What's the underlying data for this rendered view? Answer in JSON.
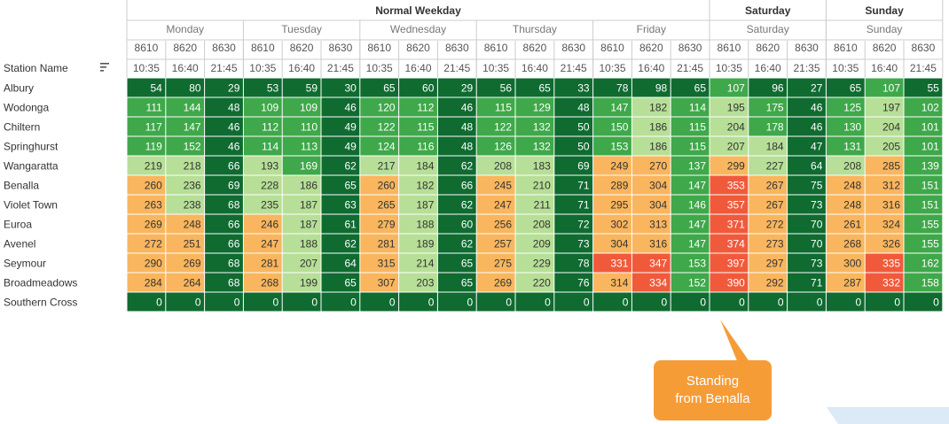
{
  "chart_data": {
    "type": "heatmap",
    "row_header": "Station Name",
    "groups": [
      {
        "label": "Normal Weekday",
        "days": [
          "Monday",
          "Tuesday",
          "Wednesday",
          "Thursday",
          "Friday"
        ]
      },
      {
        "label": "Saturday",
        "days": [
          "Saturday"
        ]
      },
      {
        "label": "Sunday",
        "days": [
          "Sunday"
        ]
      }
    ],
    "columns": [
      {
        "day": "Monday",
        "train": "8610",
        "time": "10:35"
      },
      {
        "day": "Monday",
        "train": "8620",
        "time": "16:40"
      },
      {
        "day": "Monday",
        "train": "8630",
        "time": "21:45"
      },
      {
        "day": "Tuesday",
        "train": "8610",
        "time": "10:35"
      },
      {
        "day": "Tuesday",
        "train": "8620",
        "time": "16:40"
      },
      {
        "day": "Tuesday",
        "train": "8630",
        "time": "21:45"
      },
      {
        "day": "Wednesday",
        "train": "8610",
        "time": "10:35"
      },
      {
        "day": "Wednesday",
        "train": "8620",
        "time": "16:40"
      },
      {
        "day": "Wednesday",
        "train": "8630",
        "time": "21:45"
      },
      {
        "day": "Thursday",
        "train": "8610",
        "time": "10:35"
      },
      {
        "day": "Thursday",
        "train": "8620",
        "time": "16:40"
      },
      {
        "day": "Thursday",
        "train": "8630",
        "time": "21:45"
      },
      {
        "day": "Friday",
        "train": "8610",
        "time": "10:35"
      },
      {
        "day": "Friday",
        "train": "8620",
        "time": "16:40"
      },
      {
        "day": "Friday",
        "train": "8630",
        "time": "21:45"
      },
      {
        "day": "Saturday",
        "train": "8610",
        "time": "10:35"
      },
      {
        "day": "Saturday",
        "train": "8620",
        "time": "16:40"
      },
      {
        "day": "Saturday",
        "train": "8630",
        "time": "21:35"
      },
      {
        "day": "Sunday",
        "train": "8610",
        "time": "10:35"
      },
      {
        "day": "Sunday",
        "train": "8620",
        "time": "16:40"
      },
      {
        "day": "Sunday",
        "train": "8630",
        "time": "21:45"
      }
    ],
    "rows": [
      {
        "station": "Albury",
        "values": [
          54,
          80,
          29,
          53,
          59,
          30,
          65,
          60,
          29,
          56,
          65,
          33,
          78,
          98,
          65,
          107,
          96,
          27,
          65,
          107,
          55
        ]
      },
      {
        "station": "Wodonga",
        "values": [
          111,
          144,
          48,
          109,
          109,
          46,
          120,
          112,
          46,
          115,
          129,
          48,
          147,
          182,
          114,
          195,
          175,
          46,
          125,
          197,
          102
        ]
      },
      {
        "station": "Chiltern",
        "values": [
          117,
          147,
          46,
          112,
          110,
          49,
          122,
          115,
          48,
          122,
          132,
          50,
          150,
          186,
          115,
          204,
          178,
          46,
          130,
          204,
          101
        ]
      },
      {
        "station": "Springhurst",
        "values": [
          119,
          152,
          46,
          114,
          113,
          49,
          124,
          116,
          48,
          126,
          132,
          50,
          153,
          186,
          115,
          207,
          184,
          47,
          131,
          205,
          101
        ]
      },
      {
        "station": "Wangaratta",
        "values": [
          219,
          218,
          66,
          193,
          169,
          62,
          217,
          184,
          62,
          208,
          183,
          69,
          249,
          270,
          137,
          299,
          227,
          64,
          208,
          285,
          139
        ]
      },
      {
        "station": "Benalla",
        "values": [
          260,
          236,
          69,
          228,
          186,
          65,
          260,
          182,
          66,
          245,
          210,
          71,
          289,
          304,
          147,
          353,
          267,
          75,
          248,
          312,
          151
        ]
      },
      {
        "station": "Violet Town",
        "values": [
          263,
          238,
          68,
          235,
          187,
          63,
          265,
          187,
          62,
          247,
          211,
          71,
          295,
          304,
          146,
          357,
          267,
          73,
          248,
          316,
          151
        ]
      },
      {
        "station": "Euroa",
        "values": [
          269,
          248,
          66,
          246,
          187,
          61,
          279,
          188,
          60,
          256,
          208,
          72,
          302,
          313,
          147,
          371,
          272,
          70,
          261,
          324,
          155
        ]
      },
      {
        "station": "Avenel",
        "values": [
          272,
          251,
          66,
          247,
          188,
          62,
          281,
          189,
          62,
          257,
          209,
          73,
          304,
          316,
          147,
          374,
          273,
          70,
          268,
          326,
          155
        ]
      },
      {
        "station": "Seymour",
        "values": [
          290,
          269,
          68,
          281,
          207,
          64,
          315,
          214,
          65,
          275,
          229,
          78,
          331,
          347,
          153,
          397,
          297,
          73,
          300,
          335,
          162
        ]
      },
      {
        "station": "Broadmeadows",
        "values": [
          284,
          264,
          68,
          268,
          199,
          65,
          307,
          203,
          65,
          269,
          220,
          76,
          314,
          334,
          152,
          390,
          292,
          71,
          287,
          332,
          158
        ]
      },
      {
        "station": "Southern Cross",
        "values": [
          0,
          0,
          0,
          0,
          0,
          0,
          0,
          0,
          0,
          0,
          0,
          0,
          0,
          0,
          0,
          0,
          0,
          0,
          0,
          0,
          0
        ]
      }
    ],
    "color_scale": [
      {
        "min": 0,
        "max": 100,
        "color": "#0f6b30",
        "text": "#ffffff"
      },
      {
        "min": 100,
        "max": 180,
        "color": "#3fa84a",
        "text": "#ffffff"
      },
      {
        "min": 180,
        "max": 240,
        "color": "#b7df97",
        "text": "#333333"
      },
      {
        "min": 240,
        "max": 330,
        "color": "#f9b65e",
        "text": "#333333"
      },
      {
        "min": 330,
        "max": 1000,
        "color": "#f05a3b",
        "text": "#ffffff"
      }
    ]
  },
  "annotation": {
    "text": "Standing\nfrom Benalla",
    "color": "#f59c37"
  },
  "colors": {
    "header_divider": "#cccccc",
    "corner_shape": "#dce9f7"
  }
}
